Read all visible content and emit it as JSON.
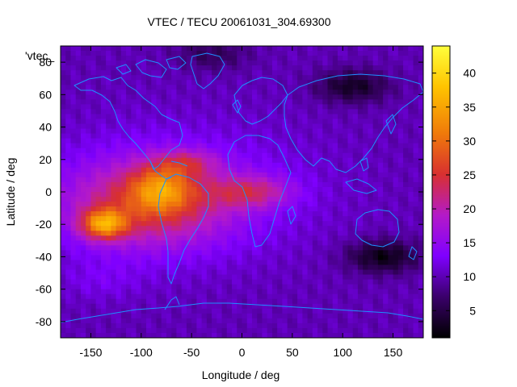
{
  "chart_data": {
    "type": "heatmap",
    "title": "VTEC / TECU 20061031_304.69300",
    "xlabel": "Longitude / deg",
    "ylabel": "Latitude / deg",
    "series_label": "'vtec_",
    "xlim": [
      -180,
      180
    ],
    "ylim": [
      -90,
      90
    ],
    "x_ticks": [
      -150,
      -100,
      -50,
      0,
      50,
      100,
      150
    ],
    "y_ticks": [
      -80,
      -60,
      -40,
      -20,
      0,
      20,
      40,
      60,
      80
    ],
    "colorbar": {
      "range": [
        1,
        44
      ],
      "ticks": [
        5,
        10,
        15,
        20,
        25,
        30,
        35,
        40
      ],
      "palette": [
        "#000000",
        "#3a006a",
        "#7f00ff",
        "#b41ac8",
        "#d83030",
        "#f07a0a",
        "#ffc400",
        "#ffff3c"
      ]
    },
    "features": {
      "background_vtec": 10,
      "equatorial_peak": {
        "lon": -137,
        "lat": -20,
        "vtec": 43
      },
      "anomaly_crest": {
        "lon": -80,
        "lat": 2,
        "vtec": 36
      },
      "atlantic_tongue": {
        "lon": 10,
        "lat": 0,
        "vtec": 22
      },
      "low_regions": [
        {
          "lon": 140,
          "lat": -40,
          "vtec": 2
        },
        {
          "lon": 110,
          "lat": 65,
          "vtec": 3
        },
        {
          "lon": -30,
          "lat": 85,
          "vtec": 6
        }
      ]
    },
    "grid": false,
    "colorbar_position": "right",
    "coastline_color": "#1e90ff"
  }
}
